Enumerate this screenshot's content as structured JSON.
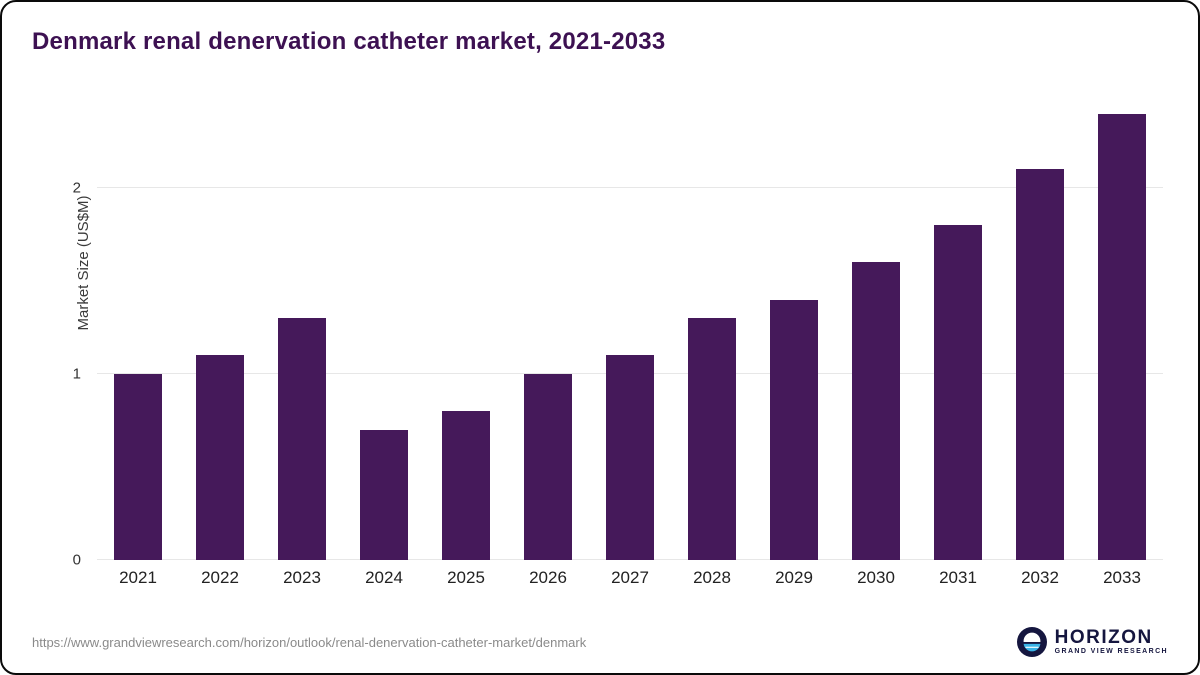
{
  "header": {
    "title": "Denmark renal denervation catheter market, 2021-2033"
  },
  "chart_data": {
    "type": "bar",
    "title": "Denmark renal denervation catheter market, 2021-2033",
    "categories": [
      "2021",
      "2022",
      "2023",
      "2024",
      "2025",
      "2026",
      "2027",
      "2028",
      "2029",
      "2030",
      "2031",
      "2032",
      "2033"
    ],
    "values": [
      1.0,
      1.1,
      1.3,
      0.7,
      0.8,
      1.0,
      1.1,
      1.3,
      1.4,
      1.6,
      1.8,
      2.1,
      2.4
    ],
    "xlabel": "",
    "ylabel": "Market Size (US$M)",
    "ylim": [
      0,
      2.5
    ],
    "yticks": [
      0,
      1,
      2
    ],
    "grid": true,
    "legend": "none",
    "bar_color": "#45195a"
  },
  "footer": {
    "source_url": "https://www.grandviewresearch.com/horizon/outlook/renal-denervation-catheter-market/denmark",
    "logo_title": "HORIZON",
    "logo_subtitle": "GRAND VIEW RESEARCH"
  },
  "colors": {
    "accent": "#45195a",
    "title": "#3d1152",
    "gridline": "#e7e7e7",
    "logo_navy": "#15163f",
    "logo_blue": "#3ab4e8"
  }
}
